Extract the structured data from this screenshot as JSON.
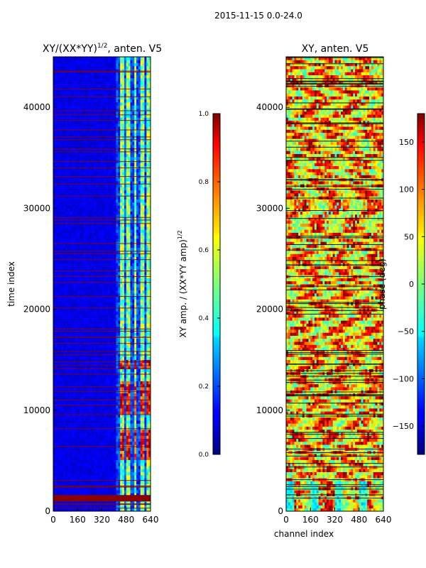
{
  "figure": {
    "suptitle": "2015-11-15 0.0-24.0",
    "colormap": "jet"
  },
  "chart_data": [
    {
      "type": "heatmap",
      "title": "XY/(XX*YY)^1/2, anten. V5",
      "title_main": "XY/(XX*YY)",
      "title_exp": "1/2",
      "title_rest": ", anten. V5",
      "xlabel": "",
      "ylabel": "time index",
      "xlim": [
        0,
        640
      ],
      "ylim": [
        0,
        45000
      ],
      "xticks": [
        0,
        160,
        320,
        480,
        640
      ],
      "yticks": [
        0,
        10000,
        20000,
        30000,
        40000
      ],
      "data_description": "Normalized cross-correlation amplitude; mostly low (~0.1) except channels ~410-640 where values reach 0.4-1.0; many saturated horizontal lines at bad time indices",
      "active_channel_range": [
        410,
        640
      ],
      "background_value": 0.1,
      "bright_time_ranges": [
        [
          5000,
          8000
        ],
        [
          9500,
          13000
        ],
        [
          14000,
          15000
        ]
      ],
      "colorbar": {
        "label": "XY amp. / (XX*YY amp)^1/2",
        "label_main": "XY amp. / (XX*YY amp)",
        "label_exp": "1/2",
        "range": [
          0.0,
          1.0
        ],
        "ticks": [
          "0.0",
          "0.2",
          "0.4",
          "0.6",
          "0.8",
          "1.0"
        ]
      }
    },
    {
      "type": "heatmap",
      "title": "XY, anten. V5",
      "xlabel": "channel index",
      "ylabel": "",
      "xlim": [
        0,
        640
      ],
      "ylim": [
        0,
        45000
      ],
      "xticks": [
        0,
        160,
        320,
        480,
        640
      ],
      "yticks": [
        0,
        10000,
        20000,
        30000,
        40000
      ],
      "data_description": "Cross-correlation phase in degrees; broad bands of -180..180 varying with channel and time, dominated by orange/red (50-180) with cyan/green streaks; black horizontal lines at flagged time indices",
      "colorbar": {
        "label": "phase (deg)",
        "range": [
          -180,
          180
        ],
        "ticks": [
          "150",
          "100",
          "50",
          "0",
          "−50",
          "−100",
          "−150"
        ],
        "tick_values": [
          150,
          100,
          50,
          0,
          -50,
          -100,
          -150
        ]
      }
    }
  ]
}
